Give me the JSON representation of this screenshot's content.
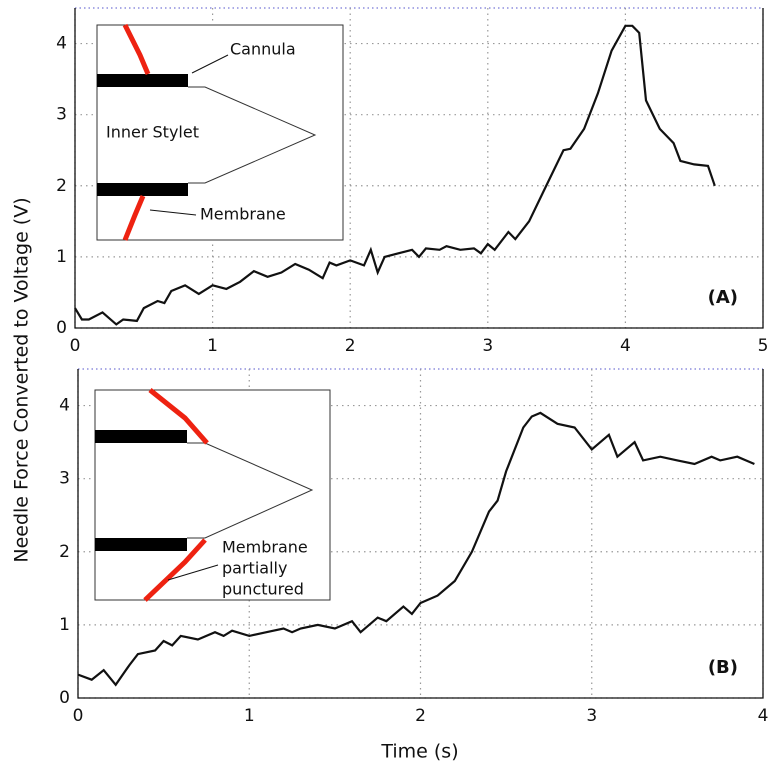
{
  "chart_data": [
    {
      "type": "line",
      "label": "(A)",
      "annotations": [
        "Cannula",
        "Inner Stylet",
        "Membrane"
      ],
      "x": [
        0,
        0.05,
        0.1,
        0.2,
        0.3,
        0.35,
        0.45,
        0.5,
        0.6,
        0.65,
        0.7,
        0.8,
        0.9,
        1.0,
        1.1,
        1.2,
        1.3,
        1.4,
        1.5,
        1.6,
        1.7,
        1.8,
        1.85,
        1.9,
        2.0,
        2.1,
        2.15,
        2.2,
        2.25,
        2.35,
        2.45,
        2.5,
        2.55,
        2.65,
        2.7,
        2.8,
        2.9,
        2.95,
        3.0,
        3.05,
        3.15,
        3.2,
        3.3,
        3.4,
        3.5,
        3.55,
        3.6,
        3.7,
        3.8,
        3.9,
        4.0,
        4.05,
        4.1,
        4.15,
        4.25,
        4.35,
        4.4,
        4.5,
        4.6,
        4.65
      ],
      "series": [
        {
          "color": "#111111",
          "values": [
            0.28,
            0.12,
            0.12,
            0.22,
            0.05,
            0.12,
            0.1,
            0.28,
            0.38,
            0.35,
            0.52,
            0.6,
            0.48,
            0.6,
            0.55,
            0.65,
            0.8,
            0.72,
            0.78,
            0.9,
            0.82,
            0.7,
            0.92,
            0.88,
            0.95,
            0.88,
            1.1,
            0.78,
            1.0,
            1.05,
            1.1,
            1.0,
            1.12,
            1.1,
            1.15,
            1.1,
            1.12,
            1.05,
            1.18,
            1.1,
            1.35,
            1.25,
            1.5,
            1.9,
            2.3,
            2.5,
            2.52,
            2.8,
            3.3,
            3.9,
            4.25,
            4.25,
            4.15,
            3.2,
            2.8,
            2.6,
            2.35,
            2.3,
            2.28,
            2.0
          ]
        }
      ],
      "xlim": [
        0,
        5
      ],
      "xticks": [
        0,
        1,
        2,
        3,
        4,
        5
      ],
      "ylim": [
        0,
        4.5
      ],
      "yticks": [
        0,
        1,
        2,
        3,
        4
      ],
      "grid": true
    },
    {
      "type": "line",
      "label": "(B)",
      "annotations": [
        "Membrane",
        "partially",
        "punctured"
      ],
      "ylabel": "Needle Force Converted to Voltage (V)",
      "xlabel": "Time (s)",
      "x": [
        0,
        0.08,
        0.15,
        0.22,
        0.3,
        0.35,
        0.45,
        0.5,
        0.55,
        0.6,
        0.7,
        0.8,
        0.85,
        0.9,
        1.0,
        1.1,
        1.2,
        1.25,
        1.3,
        1.4,
        1.5,
        1.6,
        1.65,
        1.75,
        1.8,
        1.9,
        1.95,
        2.0,
        2.1,
        2.2,
        2.3,
        2.4,
        2.45,
        2.5,
        2.6,
        2.65,
        2.7,
        2.8,
        2.9,
        3.0,
        3.1,
        3.15,
        3.25,
        3.3,
        3.4,
        3.5,
        3.6,
        3.7,
        3.75,
        3.85,
        3.9,
        3.95
      ],
      "series": [
        {
          "color": "#111111",
          "values": [
            0.32,
            0.25,
            0.38,
            0.18,
            0.45,
            0.6,
            0.65,
            0.78,
            0.72,
            0.85,
            0.8,
            0.9,
            0.85,
            0.92,
            0.85,
            0.9,
            0.95,
            0.9,
            0.95,
            1.0,
            0.95,
            1.05,
            0.9,
            1.1,
            1.05,
            1.25,
            1.15,
            1.3,
            1.4,
            1.6,
            2.0,
            2.55,
            2.7,
            3.1,
            3.7,
            3.85,
            3.9,
            3.75,
            3.7,
            3.4,
            3.6,
            3.3,
            3.5,
            3.25,
            3.3,
            3.25,
            3.2,
            3.3,
            3.25,
            3.3,
            3.25,
            3.2
          ]
        }
      ],
      "xlim": [
        0,
        4
      ],
      "xticks": [
        0,
        1,
        2,
        3,
        4
      ],
      "ylim": [
        0,
        4.5
      ],
      "yticks": [
        0,
        1,
        2,
        3,
        4
      ],
      "grid": true
    }
  ]
}
